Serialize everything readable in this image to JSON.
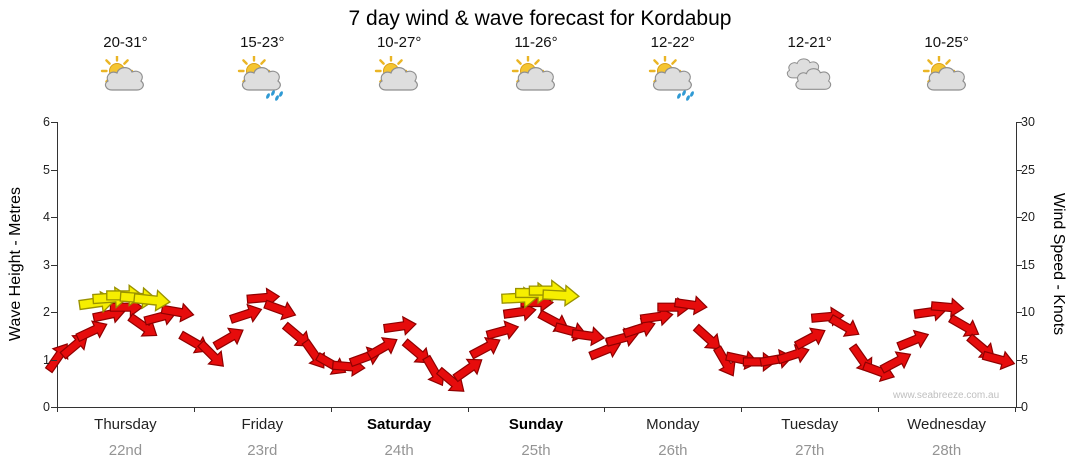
{
  "title": "7 day wind & wave forecast for Kordabup",
  "watermark": "www.seabreeze.com.au",
  "axes": {
    "left_label": "Wave Height - Metres",
    "right_label": "Wind Speed - Knots",
    "left_ticks": [
      0,
      1,
      2,
      3,
      4,
      5,
      6
    ],
    "right_ticks": [
      0,
      5,
      10,
      15,
      20,
      25,
      30
    ]
  },
  "days": [
    {
      "name": "Thursday",
      "date": "22nd",
      "temp": "20-31°",
      "icon": "sun-cloud",
      "weekend": false
    },
    {
      "name": "Friday",
      "date": "23rd",
      "temp": "15-23°",
      "icon": "sun-cloud-rain",
      "weekend": false
    },
    {
      "name": "Saturday",
      "date": "24th",
      "temp": "10-27°",
      "icon": "sun-cloud",
      "weekend": true
    },
    {
      "name": "Sunday",
      "date": "25th",
      "temp": "11-26°",
      "icon": "sun-cloud",
      "weekend": true
    },
    {
      "name": "Monday",
      "date": "26th",
      "temp": "12-22°",
      "icon": "sun-cloud-rain",
      "weekend": false
    },
    {
      "name": "Tuesday",
      "date": "27th",
      "temp": "12-21°",
      "icon": "clouds",
      "weekend": false
    },
    {
      "name": "Wednesday",
      "date": "28th",
      "temp": "10-25°",
      "icon": "sun-cloud",
      "weekend": false
    }
  ],
  "chart_data": {
    "type": "wind-arrows",
    "title": "7 day wind & wave forecast for Kordabup",
    "categories": [
      "Thursday",
      "Friday",
      "Saturday",
      "Sunday",
      "Monday",
      "Tuesday",
      "Wednesday"
    ],
    "x_unit": "3-hourly steps, 8 per day, t = 0..55",
    "wave_axis": {
      "label": "Wave Height - Metres",
      "min": 0,
      "max": 6
    },
    "wind_axis": {
      "label": "Wind Speed - Knots",
      "min": 0,
      "max": 30
    },
    "point_format": "[t, wave_height_m, arrow_direction_deg]",
    "red_points": [
      [
        0,
        1.05,
        -55
      ],
      [
        1,
        1.3,
        -40
      ],
      [
        2,
        1.6,
        -25
      ],
      [
        3,
        1.95,
        -12
      ],
      [
        4,
        2.1,
        0
      ],
      [
        5,
        1.7,
        35
      ],
      [
        6,
        1.9,
        -15
      ],
      [
        7,
        2.0,
        10
      ],
      [
        8,
        1.35,
        30
      ],
      [
        9,
        1.1,
        45
      ],
      [
        10,
        1.45,
        -30
      ],
      [
        11,
        1.95,
        -18
      ],
      [
        12,
        2.3,
        -5
      ],
      [
        13,
        2.05,
        20
      ],
      [
        14,
        1.5,
        40
      ],
      [
        15,
        1.1,
        55
      ],
      [
        16,
        0.9,
        30
      ],
      [
        17,
        0.85,
        5
      ],
      [
        18,
        1.05,
        -20
      ],
      [
        19,
        1.25,
        -30
      ],
      [
        20,
        1.7,
        -8
      ],
      [
        21,
        1.15,
        40
      ],
      [
        22,
        0.75,
        60
      ],
      [
        23,
        0.55,
        40
      ],
      [
        24,
        0.8,
        -35
      ],
      [
        25,
        1.25,
        -28
      ],
      [
        26,
        1.6,
        -15
      ],
      [
        27,
        2.0,
        -8
      ],
      [
        28,
        2.2,
        0
      ],
      [
        29,
        1.8,
        28
      ],
      [
        30,
        1.6,
        15
      ],
      [
        31,
        1.5,
        8
      ],
      [
        32,
        1.2,
        -22
      ],
      [
        33,
        1.45,
        -15
      ],
      [
        34,
        1.65,
        -18
      ],
      [
        35,
        1.9,
        -8
      ],
      [
        36,
        2.1,
        0
      ],
      [
        37,
        2.15,
        8
      ],
      [
        38,
        1.45,
        42
      ],
      [
        39,
        0.95,
        60
      ],
      [
        40,
        1.0,
        12
      ],
      [
        41,
        0.95,
        0
      ],
      [
        42,
        1.0,
        -10
      ],
      [
        43,
        1.1,
        -18
      ],
      [
        44,
        1.45,
        -28
      ],
      [
        45,
        1.9,
        -5
      ],
      [
        46,
        1.7,
        30
      ],
      [
        47,
        1.0,
        55
      ],
      [
        48,
        0.75,
        20
      ],
      [
        49,
        0.95,
        -28
      ],
      [
        50,
        1.4,
        -22
      ],
      [
        51,
        2.0,
        -8
      ],
      [
        52,
        2.1,
        5
      ],
      [
        53,
        1.7,
        30
      ],
      [
        54,
        1.25,
        40
      ],
      [
        55,
        1.0,
        15
      ]
    ],
    "yellow_points": [
      [
        2.3,
        2.2,
        -8
      ],
      [
        3.1,
        2.3,
        -4
      ],
      [
        3.9,
        2.35,
        0
      ],
      [
        4.7,
        2.3,
        4
      ],
      [
        5.5,
        2.25,
        6
      ],
      [
        27.0,
        2.3,
        -3
      ],
      [
        27.8,
        2.4,
        0
      ],
      [
        28.6,
        2.45,
        0
      ],
      [
        29.4,
        2.35,
        3
      ]
    ],
    "colors": {
      "arrow": "#e60c0c",
      "arrow_outline": "#8f0000",
      "strong_arrow": "#f6ee00",
      "strong_arrow_outline": "#9a9200"
    },
    "legend_position": "none",
    "grid": false
  }
}
